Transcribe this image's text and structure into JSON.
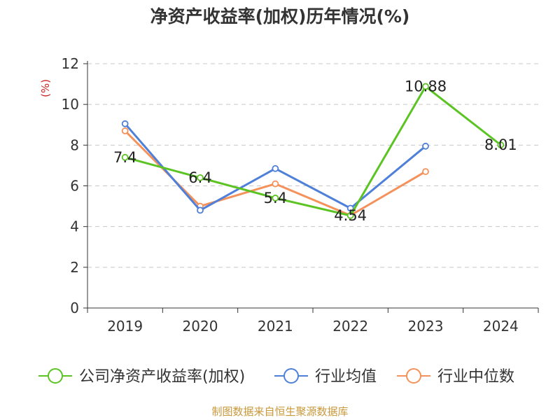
{
  "chart_data": {
    "type": "line",
    "title": "净资产收益率(加权)历年情况(%)",
    "ylabel": "(%)",
    "xlabel": "",
    "categories": [
      "2019",
      "2020",
      "2021",
      "2022",
      "2023",
      "2024"
    ],
    "ylim": [
      0,
      12
    ],
    "yticks": [
      "0",
      "2",
      "4",
      "6",
      "8",
      "10",
      "12"
    ],
    "grid": true,
    "legend_position": "bottom",
    "series": [
      {
        "name": "公司净资产收益率(加权)",
        "color": "#5bc423",
        "values": [
          7.4,
          6.4,
          5.4,
          4.54,
          10.88,
          8.01
        ],
        "labels": [
          "7.4",
          "6.4",
          "5.4",
          "4.54",
          "10.88",
          "8.01"
        ]
      },
      {
        "name": "行业均值",
        "color": "#4f80d9",
        "values": [
          9.05,
          4.8,
          6.85,
          4.9,
          7.95,
          null
        ],
        "labels": []
      },
      {
        "name": "行业中位数",
        "color": "#f5915a",
        "values": [
          8.7,
          5.0,
          6.1,
          4.55,
          6.7,
          null
        ],
        "labels": []
      }
    ],
    "source": "制图数据来自恒生聚源数据库"
  }
}
